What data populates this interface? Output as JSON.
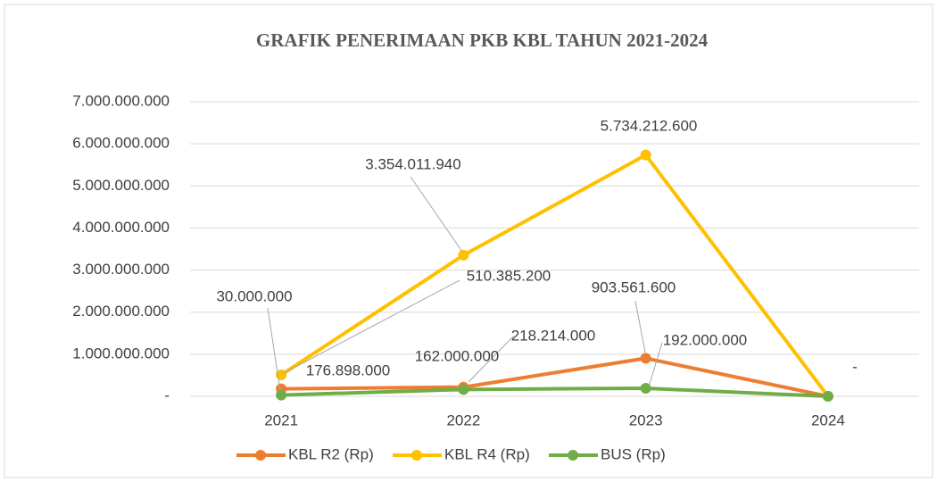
{
  "chart_data": {
    "type": "line",
    "title": "GRAFIK PENERIMAAN PKB KBL TAHUN 2021-2024",
    "categories": [
      "2021",
      "2022",
      "2023",
      "2024"
    ],
    "series": [
      {
        "name": "KBL R2 (Rp)",
        "color": "#ED7D31",
        "values": [
          176898000,
          218214000,
          903561600,
          0
        ],
        "value_labels": [
          "176.898.000",
          "218.214.000",
          "903.561.600",
          null
        ]
      },
      {
        "name": "KBL R4 (Rp)",
        "color": "#FFC000",
        "values": [
          510385200,
          3354011940,
          5734212600,
          0
        ],
        "value_labels": [
          "510.385.200",
          "3.354.011.940",
          "5.734.212.600",
          "-"
        ]
      },
      {
        "name": "BUS (Rp)",
        "color": "#70AD47",
        "values": [
          30000000,
          162000000,
          192000000,
          0
        ],
        "value_labels": [
          "30.000.000",
          "162.000.000",
          "192.000.000",
          null
        ]
      }
    ],
    "ylim": [
      0,
      7000000000
    ],
    "yticks": [
      {
        "value": 0,
        "label": "-"
      },
      {
        "value": 1000000000,
        "label": "1.000.000.000"
      },
      {
        "value": 2000000000,
        "label": "2.000.000.000"
      },
      {
        "value": 3000000000,
        "label": "3.000.000.000"
      },
      {
        "value": 4000000000,
        "label": "4.000.000.000"
      },
      {
        "value": 5000000000,
        "label": "5.000.000.000"
      },
      {
        "value": 6000000000,
        "label": "6.000.000.000"
      },
      {
        "value": 7000000000,
        "label": "7.000.000.000"
      }
    ],
    "grid": true,
    "legend": "bottom"
  }
}
